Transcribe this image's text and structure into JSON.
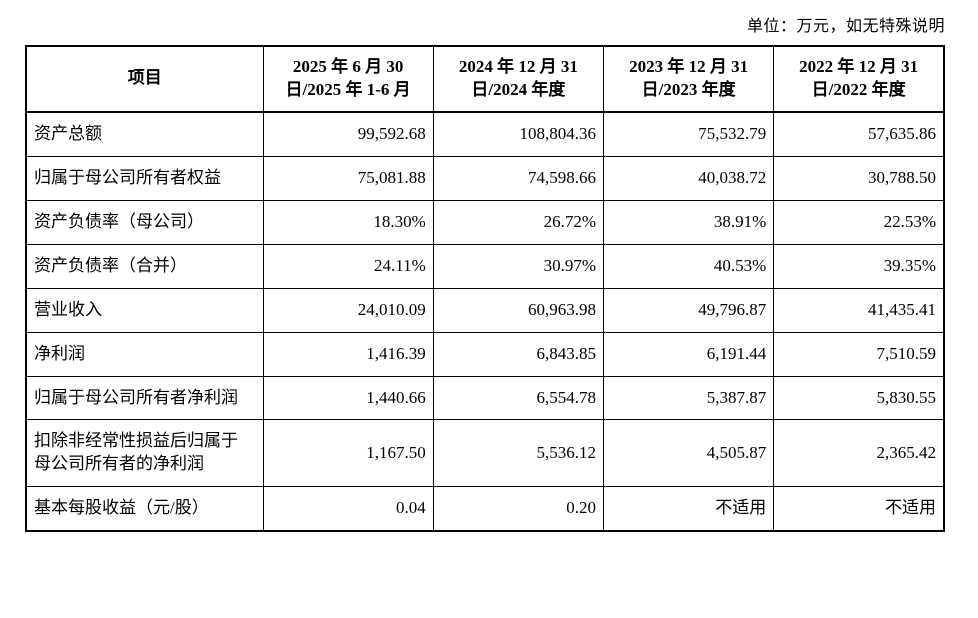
{
  "unit_note": "单位：万元，如无特殊说明",
  "table": {
    "header": [
      {
        "lines": [
          "项目"
        ]
      },
      {
        "lines": [
          "2025 年 6 月 30",
          "日/2025 年 1-6 月"
        ]
      },
      {
        "lines": [
          "2024 年 12 月 31",
          "日/2024 年度"
        ]
      },
      {
        "lines": [
          "2023 年 12 月 31",
          "日/2023 年度"
        ]
      },
      {
        "lines": [
          "2022 年 12 月 31",
          "日/2022 年度"
        ]
      }
    ],
    "rows": [
      {
        "label": "资产总额",
        "values": [
          "99,592.68",
          "108,804.36",
          "75,532.79",
          "57,635.86"
        ]
      },
      {
        "label": "归属于母公司所有者权益",
        "values": [
          "75,081.88",
          "74,598.66",
          "40,038.72",
          "30,788.50"
        ]
      },
      {
        "label": "资产负债率（母公司）",
        "values": [
          "18.30%",
          "26.72%",
          "38.91%",
          "22.53%"
        ]
      },
      {
        "label": "资产负债率（合并）",
        "values": [
          "24.11%",
          "30.97%",
          "40.53%",
          "39.35%"
        ]
      },
      {
        "label": "营业收入",
        "values": [
          "24,010.09",
          "60,963.98",
          "49,796.87",
          "41,435.41"
        ]
      },
      {
        "label": "净利润",
        "values": [
          "1,416.39",
          "6,843.85",
          "6,191.44",
          "7,510.59"
        ]
      },
      {
        "label": "归属于母公司所有者净利润",
        "values": [
          "1,440.66",
          "6,554.78",
          "5,387.87",
          "5,830.55"
        ]
      },
      {
        "label": "扣除非经常性损益后归属于母公司所有者的净利润",
        "values": [
          "1,167.50",
          "5,536.12",
          "4,505.87",
          "2,365.42"
        ]
      },
      {
        "label": "基本每股收益（元/股）",
        "values": [
          "0.04",
          "0.20",
          "不适用",
          "不适用"
        ]
      }
    ]
  }
}
